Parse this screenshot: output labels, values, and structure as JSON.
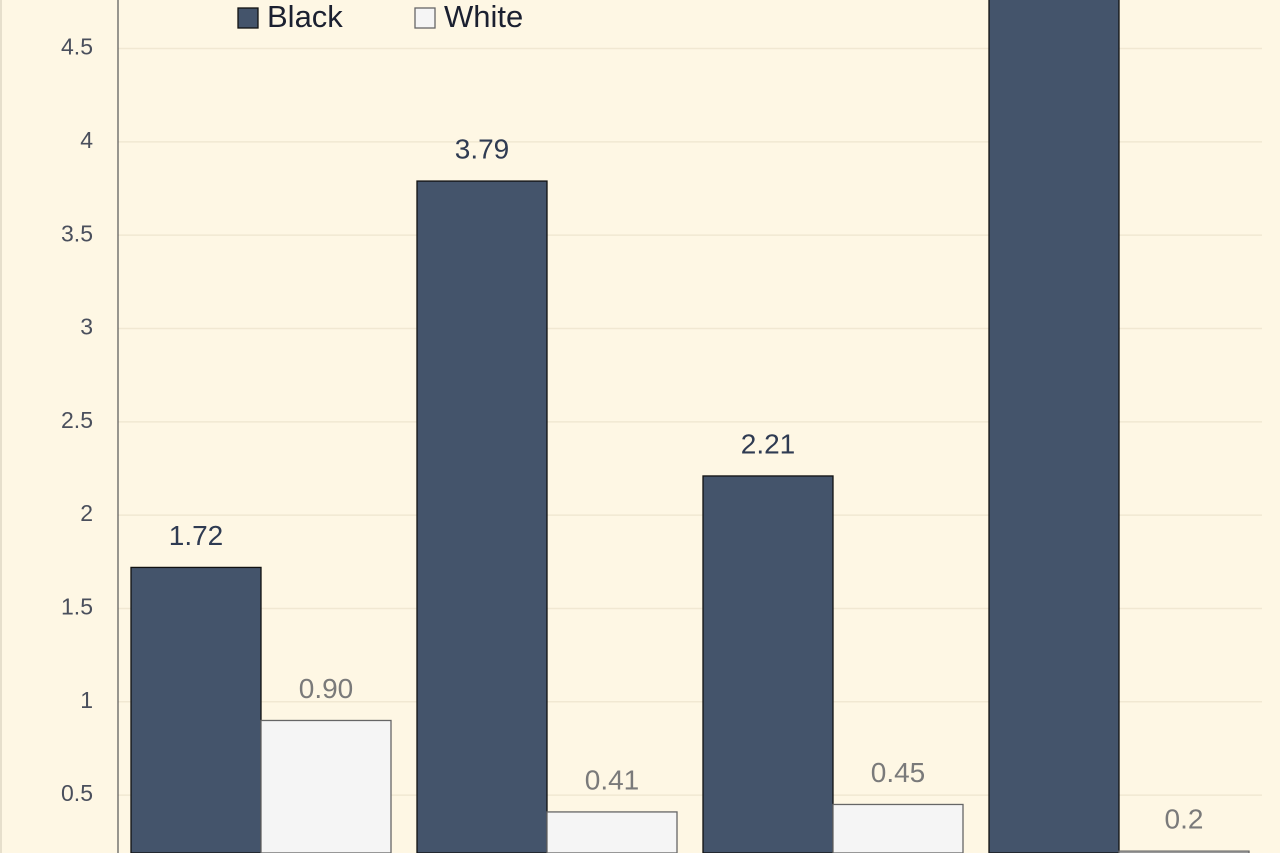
{
  "chart_data": {
    "type": "bar",
    "series": [
      {
        "name": "Black",
        "color": "#44546b",
        "values": [
          1.72,
          3.79,
          2.21,
          5.0
        ],
        "value_labels": [
          "1.72",
          "3.79",
          "2.21",
          null
        ]
      },
      {
        "name": "White",
        "color": "#f5f5f5",
        "values": [
          0.9,
          0.41,
          0.45,
          0.2
        ],
        "value_labels": [
          "0.90",
          "0.41",
          "0.45",
          "0.2"
        ]
      }
    ],
    "ylim": [
      0.19,
      4.76
    ],
    "yticks": [
      0.5,
      1,
      1.5,
      2,
      2.5,
      3,
      3.5,
      4,
      4.5
    ],
    "grid": true,
    "legend": "top"
  }
}
